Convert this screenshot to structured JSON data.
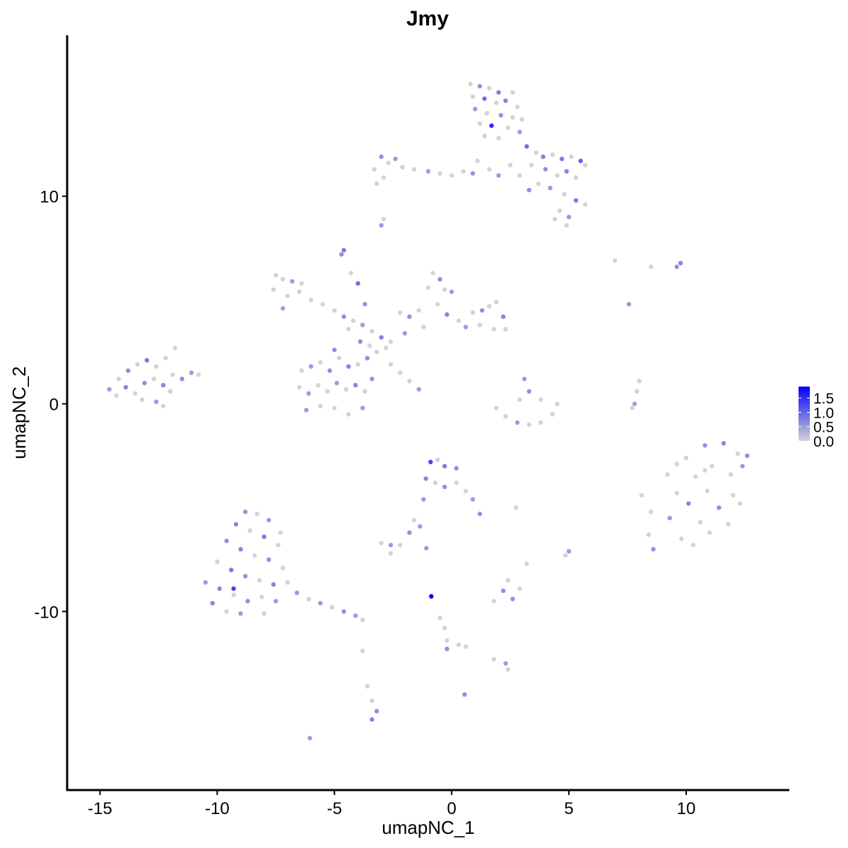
{
  "chart_data": {
    "type": "scatter",
    "title": "Jmy",
    "xlabel": "umapNC_1",
    "ylabel": "umapNC_2",
    "xlim": [
      -16.4,
      14.4
    ],
    "ylim": [
      -18.6,
      17.75
    ],
    "x_ticks": [
      -15,
      -10,
      -5,
      0,
      5,
      10
    ],
    "y_ticks": [
      -10,
      0,
      10
    ],
    "x_tick_labels": [
      "-15",
      "-10",
      "-5",
      "0",
      "5",
      "10"
    ],
    "y_tick_labels": [
      "-10",
      "0",
      "10"
    ],
    "grid": false,
    "legend": {
      "placement": "right",
      "type": "colorbar",
      "range": [
        0,
        1.9
      ],
      "ticks": [
        0,
        0.5,
        1.0,
        1.5
      ],
      "tick_labels": [
        "0.0",
        "0.5",
        "1.0",
        "1.5"
      ],
      "low_color": "#D3D3D3",
      "high_color": "#0000FF"
    },
    "point_fields": [
      "x",
      "y",
      "expression"
    ],
    "points": [
      [
        0.8,
        15.4,
        0
      ],
      [
        1.2,
        15.3,
        0.6
      ],
      [
        1.6,
        15.2,
        0
      ],
      [
        2.0,
        15.0,
        0.8
      ],
      [
        2.6,
        15.0,
        0
      ],
      [
        0.9,
        14.8,
        0
      ],
      [
        1.4,
        14.7,
        0.9
      ],
      [
        1.9,
        14.5,
        0
      ],
      [
        2.3,
        14.6,
        0.7
      ],
      [
        2.8,
        14.3,
        0
      ],
      [
        1.0,
        14.2,
        0.5
      ],
      [
        1.5,
        14.0,
        0
      ],
      [
        2.1,
        13.9,
        0.6
      ],
      [
        2.6,
        13.8,
        0
      ],
      [
        3.0,
        13.7,
        0
      ],
      [
        1.2,
        13.5,
        0
      ],
      [
        1.7,
        13.4,
        1.5
      ],
      [
        2.4,
        13.3,
        0
      ],
      [
        2.9,
        13.1,
        0.5
      ],
      [
        1.4,
        12.9,
        0
      ],
      [
        2.0,
        12.8,
        0
      ],
      [
        3.2,
        12.4,
        0.9
      ],
      [
        3.6,
        12.1,
        0
      ],
      [
        3.9,
        11.9,
        0.7
      ],
      [
        4.3,
        12.0,
        0
      ],
      [
        4.7,
        11.8,
        0.8
      ],
      [
        5.1,
        11.9,
        0
      ],
      [
        5.5,
        11.7,
        1.0
      ],
      [
        5.7,
        11.5,
        0
      ],
      [
        3.4,
        11.5,
        0
      ],
      [
        4.0,
        11.3,
        0.6
      ],
      [
        4.5,
        11.0,
        0
      ],
      [
        4.9,
        11.2,
        0.7
      ],
      [
        5.3,
        10.9,
        0
      ],
      [
        3.7,
        10.6,
        0
      ],
      [
        4.2,
        10.4,
        0.5
      ],
      [
        4.8,
        10.1,
        0
      ],
      [
        5.3,
        9.8,
        0.8
      ],
      [
        5.7,
        9.6,
        0
      ],
      [
        4.6,
        9.3,
        0
      ],
      [
        5.0,
        9.0,
        0.5
      ],
      [
        4.9,
        8.6,
        0
      ],
      [
        4.4,
        8.9,
        0
      ],
      [
        3.3,
        10.3,
        0.6
      ],
      [
        2.5,
        11.5,
        0
      ],
      [
        2.0,
        11.0,
        0.5
      ],
      [
        1.6,
        11.3,
        0
      ],
      [
        2.9,
        11.0,
        0
      ],
      [
        -3.3,
        11.3,
        0
      ],
      [
        -3.0,
        11.9,
        0.6
      ],
      [
        -2.7,
        11.6,
        0
      ],
      [
        -2.4,
        11.8,
        0.5
      ],
      [
        -2.9,
        10.9,
        0
      ],
      [
        -2.1,
        11.4,
        0
      ],
      [
        -1.6,
        11.3,
        0
      ],
      [
        -1.0,
        11.2,
        0.5
      ],
      [
        -0.5,
        11.1,
        0
      ],
      [
        0,
        11.0,
        0
      ],
      [
        0.5,
        11.2,
        0
      ],
      [
        0.9,
        11.1,
        0.6
      ],
      [
        1.1,
        11.7,
        0
      ],
      [
        -3.2,
        10.6,
        0
      ],
      [
        -3.0,
        8.6,
        0.5
      ],
      [
        -2.9,
        8.9,
        0
      ],
      [
        -4.6,
        7.4,
        0.8
      ],
      [
        -4.7,
        7.2,
        0.6
      ],
      [
        -7.5,
        6.2,
        0
      ],
      [
        -7.2,
        6.0,
        0
      ],
      [
        -6.8,
        5.9,
        0.5
      ],
      [
        -6.4,
        5.8,
        0
      ],
      [
        -7.6,
        5.5,
        0
      ],
      [
        -7.0,
        5.2,
        0
      ],
      [
        -6.5,
        5.4,
        0
      ],
      [
        -6.0,
        5.0,
        0
      ],
      [
        -5.5,
        4.8,
        0
      ],
      [
        -7.2,
        4.6,
        0.5
      ],
      [
        -5.0,
        4.5,
        0
      ],
      [
        -4.6,
        4.2,
        0.6
      ],
      [
        -4.2,
        4.0,
        0
      ],
      [
        -3.8,
        3.8,
        0.5
      ],
      [
        -3.4,
        3.5,
        0
      ],
      [
        -3.0,
        3.2,
        0.7
      ],
      [
        -2.6,
        3.0,
        0
      ],
      [
        -4.4,
        3.6,
        0
      ],
      [
        -3.9,
        3.0,
        0.6
      ],
      [
        -3.5,
        2.8,
        0
      ],
      [
        -3.2,
        2.5,
        0
      ],
      [
        -2.8,
        2.7,
        0
      ],
      [
        -4.0,
        5.8,
        0.9
      ],
      [
        -4.3,
        6.3,
        0
      ],
      [
        -3.7,
        4.8,
        0.6
      ],
      [
        -6.4,
        1.6,
        0
      ],
      [
        -6.0,
        1.8,
        0.5
      ],
      [
        -5.6,
        2.0,
        0
      ],
      [
        -5.2,
        1.6,
        0.6
      ],
      [
        -4.8,
        2.2,
        0
      ],
      [
        -4.4,
        1.8,
        0.7
      ],
      [
        -4.0,
        1.9,
        0
      ],
      [
        -3.6,
        2.2,
        0.6
      ],
      [
        -6.5,
        0.8,
        0
      ],
      [
        -6.1,
        0.5,
        0.5
      ],
      [
        -5.7,
        0.9,
        0
      ],
      [
        -5.3,
        0.6,
        0
      ],
      [
        -4.9,
        1.0,
        0.5
      ],
      [
        -4.5,
        0.7,
        0
      ],
      [
        -4.1,
        0.9,
        0.7
      ],
      [
        -3.7,
        0.6,
        0
      ],
      [
        -3.4,
        1.2,
        0.6
      ],
      [
        -6.2,
        -0.3,
        0.5
      ],
      [
        -5.6,
        -0.1,
        0
      ],
      [
        -5.0,
        -0.2,
        0
      ],
      [
        -4.4,
        -0.5,
        0
      ],
      [
        -3.8,
        -0.2,
        0.5
      ],
      [
        -5.0,
        2.6,
        0.6
      ],
      [
        -2.6,
        1.9,
        0
      ],
      [
        -2.2,
        1.5,
        0
      ],
      [
        -1.8,
        1.1,
        0
      ],
      [
        -1.4,
        0.7,
        0.5
      ],
      [
        -2.2,
        4.4,
        0
      ],
      [
        -1.8,
        4.2,
        0.6
      ],
      [
        -1.4,
        4.5,
        0
      ],
      [
        -1.0,
        5.6,
        0
      ],
      [
        -0.8,
        6.3,
        0
      ],
      [
        -0.5,
        6.0,
        0.6
      ],
      [
        -0.3,
        5.5,
        0
      ],
      [
        0,
        5.4,
        0.5
      ],
      [
        -0.6,
        4.8,
        0
      ],
      [
        -0.2,
        4.3,
        0.7
      ],
      [
        0.3,
        4.0,
        0
      ],
      [
        0.6,
        3.7,
        0.5
      ],
      [
        0.9,
        4.4,
        0
      ],
      [
        1.3,
        4.5,
        0.6
      ],
      [
        1.6,
        4.7,
        0
      ],
      [
        1.9,
        4.9,
        0
      ],
      [
        2.2,
        4.2,
        0.7
      ],
      [
        2.3,
        3.6,
        0
      ],
      [
        1.8,
        3.6,
        0
      ],
      [
        1.2,
        3.8,
        0
      ],
      [
        -1.2,
        3.7,
        0
      ],
      [
        -2.0,
        3.4,
        0.5
      ],
      [
        -14.6,
        0.7,
        0.5
      ],
      [
        -14.2,
        1.2,
        0
      ],
      [
        -13.8,
        1.6,
        0.6
      ],
      [
        -13.4,
        1.9,
        0
      ],
      [
        -13.0,
        2.1,
        0.8
      ],
      [
        -12.6,
        1.8,
        0
      ],
      [
        -12.2,
        2.2,
        0
      ],
      [
        -11.8,
        2.7,
        0
      ],
      [
        -14.3,
        0.4,
        0
      ],
      [
        -13.9,
        0.8,
        0.7
      ],
      [
        -13.5,
        0.5,
        0
      ],
      [
        -13.1,
        1.0,
        0.6
      ],
      [
        -12.7,
        1.2,
        0
      ],
      [
        -12.3,
        0.9,
        0.7
      ],
      [
        -11.9,
        1.4,
        0
      ],
      [
        -11.5,
        1.2,
        0.6
      ],
      [
        -11.1,
        1.5,
        0.5
      ],
      [
        -10.8,
        1.4,
        0
      ],
      [
        -13.2,
        0.2,
        0
      ],
      [
        -12.6,
        0.1,
        0.5
      ],
      [
        -12.3,
        -0.1,
        0
      ],
      [
        -12.0,
        0.6,
        0
      ],
      [
        1.9,
        -0.2,
        0
      ],
      [
        2.3,
        -0.6,
        0
      ],
      [
        2.8,
        -0.9,
        0.5
      ],
      [
        3.3,
        -1.0,
        0
      ],
      [
        3.8,
        -0.9,
        0
      ],
      [
        4.3,
        -0.5,
        0
      ],
      [
        4.5,
        0,
        0
      ],
      [
        3.1,
        1.2,
        0.5
      ],
      [
        3.3,
        0.6,
        0.6
      ],
      [
        2.9,
        0.2,
        0
      ],
      [
        3.8,
        0.2,
        0
      ],
      [
        8.0,
        1.1,
        0
      ],
      [
        7.9,
        0.6,
        0
      ],
      [
        7.8,
        0,
        0.5
      ],
      [
        7.7,
        -0.2,
        0
      ],
      [
        8.1,
        -4.4,
        0
      ],
      [
        8.5,
        -5.2,
        0
      ],
      [
        8.4,
        -6.3,
        0
      ],
      [
        8.6,
        -7.0,
        0.6
      ],
      [
        9.2,
        -3.4,
        0
      ],
      [
        9.6,
        -4.3,
        0
      ],
      [
        9.3,
        -5.5,
        0.5
      ],
      [
        9.8,
        -6.5,
        0
      ],
      [
        10.0,
        -2.6,
        0
      ],
      [
        10.4,
        -3.5,
        0
      ],
      [
        10.1,
        -4.8,
        0.7
      ],
      [
        10.6,
        -5.7,
        0
      ],
      [
        10.3,
        -6.8,
        0
      ],
      [
        10.8,
        -2.0,
        0.6
      ],
      [
        11.1,
        -3.0,
        0
      ],
      [
        10.9,
        -4.2,
        0
      ],
      [
        11.4,
        -5.0,
        0.6
      ],
      [
        11.0,
        -6.2,
        0
      ],
      [
        11.6,
        -1.9,
        0.7
      ],
      [
        11.9,
        -3.4,
        0
      ],
      [
        12.2,
        -2.4,
        0
      ],
      [
        12.0,
        -4.4,
        0
      ],
      [
        12.4,
        -3.0,
        0.5
      ],
      [
        12.6,
        -2.5,
        0.6
      ],
      [
        11.8,
        -5.8,
        0
      ],
      [
        12.3,
        -4.8,
        0
      ],
      [
        9.6,
        -2.9,
        0
      ],
      [
        10.8,
        -3.2,
        0
      ],
      [
        -8.8,
        -5.2,
        0.6
      ],
      [
        -8.3,
        -5.3,
        0
      ],
      [
        -7.8,
        -5.6,
        0.5
      ],
      [
        -9.2,
        -5.8,
        0.7
      ],
      [
        -8.6,
        -6.1,
        0
      ],
      [
        -8.0,
        -6.4,
        0.8
      ],
      [
        -7.4,
        -6.8,
        0
      ],
      [
        -9.6,
        -6.6,
        0.6
      ],
      [
        -9.0,
        -7.0,
        0.7
      ],
      [
        -8.4,
        -7.3,
        0
      ],
      [
        -7.8,
        -7.5,
        0.6
      ],
      [
        -7.2,
        -7.9,
        0
      ],
      [
        -10.0,
        -7.6,
        0
      ],
      [
        -9.4,
        -8.0,
        0.8
      ],
      [
        -8.8,
        -8.3,
        0.6
      ],
      [
        -8.2,
        -8.5,
        0
      ],
      [
        -7.6,
        -8.7,
        0.7
      ],
      [
        -7.0,
        -8.6,
        0
      ],
      [
        -10.5,
        -8.6,
        0.5
      ],
      [
        -9.9,
        -8.9,
        0.7
      ],
      [
        -9.3,
        -9.2,
        0
      ],
      [
        -8.7,
        -9.5,
        0.6
      ],
      [
        -8.1,
        -9.3,
        0
      ],
      [
        -7.5,
        -9.5,
        0.5
      ],
      [
        -10.2,
        -9.6,
        0.7
      ],
      [
        -9.6,
        -10.0,
        0
      ],
      [
        -9.0,
        -10.1,
        0.5
      ],
      [
        -8.0,
        -10.1,
        0
      ],
      [
        -6.6,
        -9.1,
        0.5
      ],
      [
        -6.1,
        -9.4,
        0
      ],
      [
        -5.6,
        -9.6,
        0.5
      ],
      [
        -5.1,
        -9.8,
        0
      ],
      [
        -4.6,
        -10.0,
        0.6
      ],
      [
        -4.1,
        -10.2,
        0.5
      ],
      [
        -3.8,
        -10.4,
        0
      ],
      [
        -9.3,
        -8.9,
        1.3
      ],
      [
        -7.3,
        -6.2,
        0
      ],
      [
        -0.9,
        -2.8,
        1.3
      ],
      [
        -0.6,
        -2.7,
        0
      ],
      [
        -0.3,
        -3.0,
        0.8
      ],
      [
        0.2,
        -3.1,
        0.6
      ],
      [
        -1.1,
        -3.6,
        0.7
      ],
      [
        -0.7,
        -3.8,
        0
      ],
      [
        -0.3,
        -4.0,
        0.6
      ],
      [
        0.2,
        -3.8,
        0
      ],
      [
        0.6,
        -4.2,
        0
      ],
      [
        0.9,
        -4.6,
        0.5
      ],
      [
        1.2,
        -5.3,
        0.6
      ],
      [
        -1.2,
        -4.6,
        0.5
      ],
      [
        -1.6,
        -5.6,
        0
      ],
      [
        -1.8,
        -6.2,
        0.6
      ],
      [
        -3.0,
        -6.7,
        0
      ],
      [
        -2.6,
        -6.8,
        0.5
      ],
      [
        -2.2,
        -6.8,
        0
      ],
      [
        -2.6,
        -7.2,
        0
      ],
      [
        1.8,
        -9.5,
        0
      ],
      [
        2.2,
        -9.0,
        0.6
      ],
      [
        2.6,
        -9.4,
        0.6
      ],
      [
        2.9,
        -8.9,
        0
      ],
      [
        2.4,
        -8.5,
        0
      ],
      [
        3.2,
        -7.7,
        0
      ],
      [
        -0.5,
        -10.3,
        0
      ],
      [
        -0.3,
        -10.8,
        0
      ],
      [
        -0.2,
        -11.4,
        0
      ],
      [
        -0.2,
        -11.8,
        0.6
      ],
      [
        0.3,
        -11.6,
        0
      ],
      [
        0.6,
        -11.7,
        0
      ],
      [
        1.8,
        -12.3,
        0
      ],
      [
        2.3,
        -12.5,
        0.5
      ],
      [
        2.4,
        -12.8,
        0
      ],
      [
        -3.6,
        -13.6,
        0
      ],
      [
        -3.4,
        -14.3,
        0
      ],
      [
        -3.2,
        -14.8,
        0.6
      ],
      [
        -3.4,
        -15.2,
        0.7
      ],
      [
        -3.8,
        -11.9,
        0
      ],
      [
        -6.05,
        -16.1,
        0.5
      ],
      [
        0.55,
        -14.0,
        0.6
      ],
      [
        -0.87,
        -9.27,
        1.9
      ],
      [
        9.76,
        6.78,
        0.7
      ],
      [
        9.6,
        6.6,
        0.6
      ],
      [
        6.96,
        6.9,
        0
      ],
      [
        7.56,
        4.8,
        0.5
      ],
      [
        8.5,
        6.6,
        0
      ],
      [
        4.85,
        -7.3,
        0
      ],
      [
        5.0,
        -7.1,
        0.5
      ],
      [
        2.74,
        -5.0,
        0
      ],
      [
        -1.08,
        -6.95,
        0.5
      ],
      [
        -1.35,
        -5.9,
        0.5
      ]
    ]
  }
}
